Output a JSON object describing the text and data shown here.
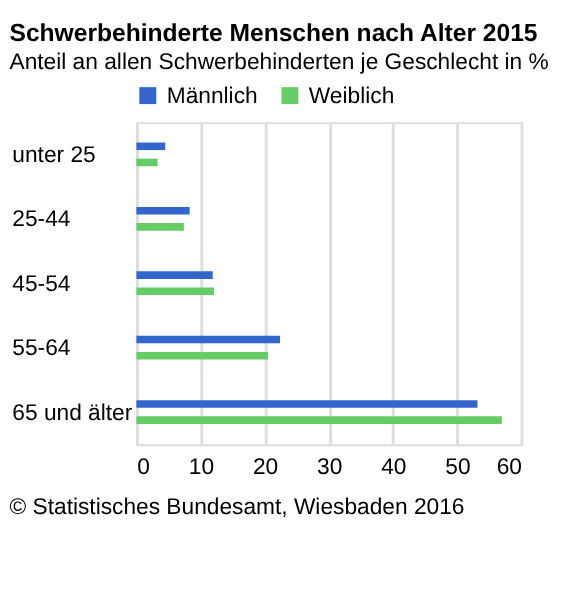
{
  "chart_data": {
    "type": "bar",
    "orientation": "horizontal",
    "title": "Schwerbehinderte Menschen nach Alter 2015",
    "subtitle": "Anteil an allen Schwerbehinderten je Geschlecht  in %",
    "categories": [
      "unter 25",
      "25-44",
      "45-54",
      "55-64",
      "65 und älter"
    ],
    "series": [
      {
        "name": "Männlich",
        "color": "#3366cc",
        "values": [
          4.5,
          8.3,
          11.9,
          22.4,
          53.2
        ]
      },
      {
        "name": "Weiblich",
        "color": "#66cc66",
        "values": [
          3.3,
          7.4,
          12.1,
          20.5,
          57.0
        ]
      }
    ],
    "xlim": [
      0,
      60
    ],
    "xticks": [
      0,
      10,
      20,
      30,
      40,
      50,
      60
    ],
    "grid": "x",
    "legend": "top left",
    "annotations": [
      "© Statistisches Bundesamt, Wiesbaden 2016"
    ]
  }
}
